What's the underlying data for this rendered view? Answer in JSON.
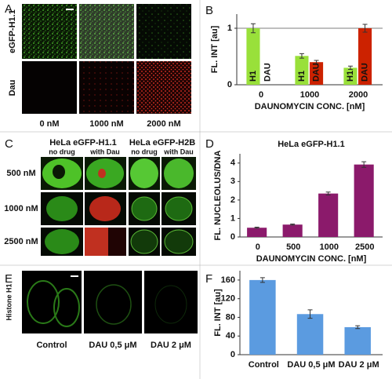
{
  "panel_labels": [
    "A",
    "B",
    "C",
    "D",
    "E",
    "F"
  ],
  "panel_a": {
    "row_labels": [
      "eGFP-H1.1",
      "Dau"
    ],
    "column_labels": [
      "0 nM",
      "1000 nM",
      "2000 nM"
    ]
  },
  "panel_c": {
    "groups": [
      {
        "title": "HeLa eGFP-H1.1",
        "columns": [
          "no drug",
          "with Dau"
        ]
      },
      {
        "title": "HeLa eGFP-H2B",
        "columns": [
          "no drug",
          "with Dau"
        ]
      }
    ],
    "row_labels": [
      "500 nM",
      "1000 nM",
      "2500 nM"
    ]
  },
  "panel_e": {
    "row_label": "Histone H1",
    "column_labels": [
      "Control",
      "DAU 0,5 μM",
      "DAU 2 μM"
    ]
  },
  "chart_data": [
    {
      "type": "bar",
      "x_label": "DAUNOMYCIN CONC. [nM]",
      "y_label": "FL. INT [au]",
      "categories": [
        "0",
        "1000",
        "2000"
      ],
      "series": [
        {
          "name": "H1",
          "color": "#99e03a",
          "values": [
            1.0,
            0.51,
            0.3
          ],
          "errors": [
            0.08,
            0.04,
            0.03
          ]
        },
        {
          "name": "DAU",
          "color": "#cc2200",
          "values": [
            0,
            0.4,
            1.0
          ],
          "errors": [
            0,
            0.03,
            0.07
          ]
        }
      ],
      "series_name_in_bars": true,
      "ylim": [
        0,
        1.25
      ],
      "yticks": [
        0,
        1
      ],
      "grid": true
    },
    {
      "type": "bar",
      "title": "HeLa eGFP-H1.1",
      "x_label": "DAUNOMYCIN CONC. [nM]",
      "y_label": "FL. NUCLEOLUS/DNA",
      "categories": [
        "0",
        "500",
        "1000",
        "2500"
      ],
      "series": [
        {
          "color": "#8b1a6b",
          "values": [
            0.5,
            0.67,
            2.35,
            3.92
          ],
          "errors": [
            0.03,
            0.03,
            0.08,
            0.15
          ]
        }
      ],
      "ylim": [
        0,
        4.5
      ],
      "yticks": [
        0,
        1,
        2,
        3,
        4
      ],
      "grid": false
    },
    {
      "type": "bar",
      "y_label": "FL. INT [au]",
      "categories": [
        "Control",
        "DAU 0,5 μM",
        "DAU 2 μM"
      ],
      "series": [
        {
          "color": "#5b9be0",
          "values": [
            160,
            87,
            59
          ],
          "errors": [
            5,
            9,
            3
          ]
        }
      ],
      "ylim": [
        0,
        180
      ],
      "yticks": [
        0,
        40,
        80,
        120,
        160
      ],
      "grid": false
    }
  ]
}
